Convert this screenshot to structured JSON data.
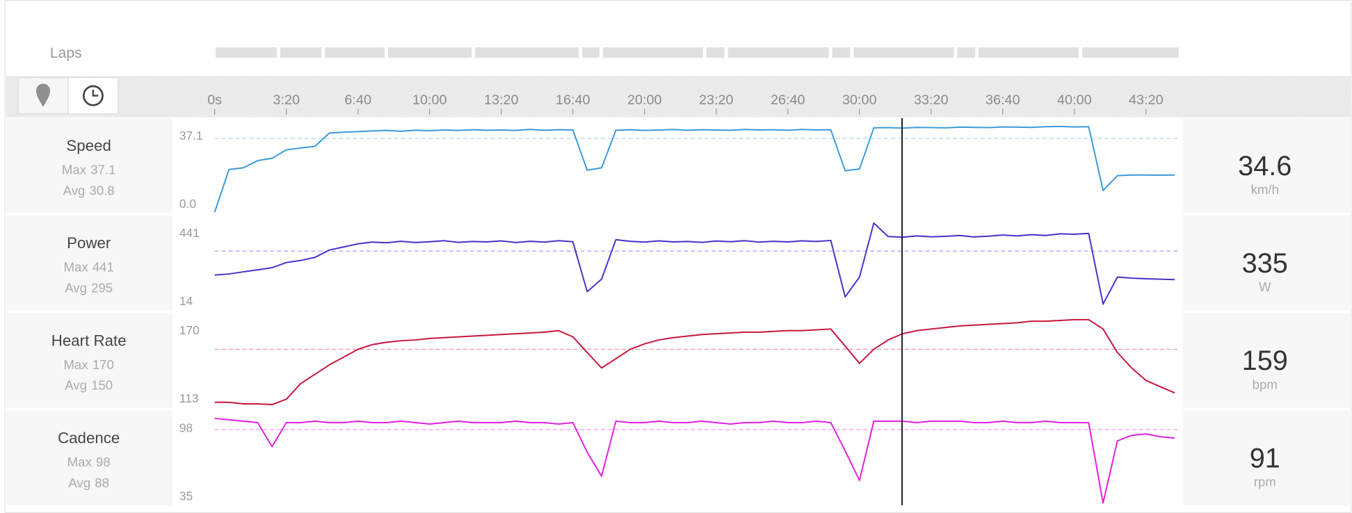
{
  "laps": {
    "label": "Laps",
    "bounds": [
      0,
      178,
      303,
      479,
      722,
      1021,
      1079,
      1368,
      1428,
      1719,
      1779,
      2068,
      2128,
      2417,
      2696
    ]
  },
  "time_axis": {
    "xlim": [
      0,
      2696
    ],
    "xticks": [
      {
        "value": 0,
        "label": "0s"
      },
      {
        "value": 200,
        "label": "3:20"
      },
      {
        "value": 400,
        "label": "6:40"
      },
      {
        "value": 600,
        "label": "10:00"
      },
      {
        "value": 800,
        "label": "13:20"
      },
      {
        "value": 1000,
        "label": "16:40"
      },
      {
        "value": 1200,
        "label": "20:00"
      },
      {
        "value": 1400,
        "label": "23:20"
      },
      {
        "value": 1600,
        "label": "26:40"
      },
      {
        "value": 1800,
        "label": "30:00"
      },
      {
        "value": 2000,
        "label": "33:20"
      },
      {
        "value": 2200,
        "label": "36:40"
      },
      {
        "value": 2400,
        "label": "40:00"
      },
      {
        "value": 2600,
        "label": "43:20"
      }
    ]
  },
  "cursor": 1919,
  "chart_data": [
    {
      "type": "line",
      "title": "Speed",
      "color": "#3a9ad9",
      "ylim": [
        0,
        37.1
      ],
      "yticks": [
        {
          "value": 0,
          "label": "0.0"
        },
        37.1
      ],
      "stats": [
        {
          "label": "Max",
          "value": 37.1
        },
        {
          "label": "Avg",
          "value": 30.8
        }
      ],
      "current": {
        "value": 34.6,
        "unit": "km/h"
      },
      "x": [
        0,
        40,
        80,
        120,
        160,
        200,
        240,
        280,
        320,
        360,
        400,
        440,
        480,
        520,
        560,
        600,
        640,
        680,
        720,
        760,
        800,
        840,
        880,
        920,
        960,
        1000,
        1040,
        1080,
        1120,
        1160,
        1200,
        1240,
        1280,
        1320,
        1360,
        1400,
        1440,
        1480,
        1520,
        1560,
        1600,
        1640,
        1680,
        1720,
        1760,
        1800,
        1840,
        1880,
        1920,
        1960,
        2000,
        2040,
        2080,
        2120,
        2160,
        2200,
        2240,
        2280,
        2320,
        2360,
        2400,
        2440,
        2480,
        2520,
        2560,
        2600,
        2640,
        2680
      ],
      "values": [
        0,
        17.8,
        18.5,
        21.5,
        22.5,
        26,
        26.8,
        27.5,
        33,
        33.4,
        33.6,
        33.9,
        34.1,
        33.8,
        34.2,
        34,
        34.3,
        34.1,
        34.4,
        34.2,
        34.3,
        34.1,
        34.5,
        34.2,
        34.4,
        34.3,
        17.5,
        18.5,
        34.2,
        34.4,
        34.1,
        34.3,
        34.5,
        34.2,
        34.4,
        34.3,
        34.2,
        34.5,
        34.3,
        34.4,
        34.2,
        34.5,
        34.3,
        34.4,
        17.3,
        18,
        35.2,
        35.3,
        35.1,
        35.4,
        35.3,
        35.2,
        35.5,
        35.4,
        35.3,
        35.6,
        35.5,
        35.4,
        35.7,
        35.8,
        35.6,
        35.7,
        9,
        15.2,
        15.5,
        15.5,
        15.4,
        15.5
      ]
    },
    {
      "type": "line",
      "title": "Power",
      "color": "#4b2fc9",
      "ylim": [
        14,
        441
      ],
      "yticks": [
        14,
        441
      ],
      "stats": [
        {
          "label": "Max",
          "value": 441
        },
        {
          "label": "Avg",
          "value": 295
        }
      ],
      "current": {
        "value": 335,
        "unit": "W"
      },
      "x": [
        0,
        40,
        80,
        120,
        160,
        200,
        240,
        280,
        320,
        360,
        400,
        440,
        480,
        520,
        560,
        600,
        640,
        680,
        720,
        760,
        800,
        840,
        880,
        920,
        960,
        1000,
        1040,
        1080,
        1120,
        1160,
        1200,
        1240,
        1280,
        1320,
        1360,
        1400,
        1440,
        1480,
        1520,
        1560,
        1600,
        1640,
        1680,
        1720,
        1760,
        1800,
        1840,
        1880,
        1920,
        1960,
        2000,
        2040,
        2080,
        2120,
        2160,
        2200,
        2240,
        2280,
        2320,
        2360,
        2400,
        2440,
        2480,
        2520,
        2560,
        2600,
        2640,
        2680
      ],
      "values": [
        180,
        185,
        195,
        205,
        215,
        240,
        250,
        265,
        300,
        315,
        330,
        338,
        335,
        342,
        336,
        340,
        345,
        337,
        341,
        339,
        344,
        336,
        342,
        338,
        345,
        340,
        100,
        160,
        350,
        342,
        338,
        344,
        339,
        341,
        337,
        343,
        340,
        345,
        338,
        342,
        339,
        344,
        341,
        346,
        75,
        170,
        430,
        365,
        362,
        368,
        364,
        366,
        370,
        363,
        367,
        372,
        368,
        374,
        370,
        378,
        376,
        380,
        40,
        170,
        165,
        162,
        160,
        158
      ]
    },
    {
      "type": "line",
      "title": "Heart Rate",
      "color": "#c8163c",
      "ylim": [
        113,
        170
      ],
      "yticks": [
        113,
        170
      ],
      "stats": [
        {
          "label": "Max",
          "value": 170
        },
        {
          "label": "Avg",
          "value": 150
        }
      ],
      "current": {
        "value": 159,
        "unit": "bpm"
      },
      "x": [
        0,
        40,
        80,
        120,
        160,
        200,
        240,
        280,
        320,
        360,
        400,
        440,
        480,
        520,
        560,
        600,
        640,
        680,
        720,
        760,
        800,
        840,
        880,
        920,
        960,
        1000,
        1040,
        1080,
        1120,
        1160,
        1200,
        1240,
        1280,
        1320,
        1360,
        1400,
        1440,
        1480,
        1520,
        1560,
        1600,
        1640,
        1680,
        1720,
        1760,
        1800,
        1840,
        1880,
        1920,
        1960,
        2000,
        2040,
        2080,
        2120,
        2160,
        2200,
        2240,
        2280,
        2320,
        2360,
        2400,
        2440,
        2480,
        2520,
        2560,
        2600,
        2640,
        2680
      ],
      "values": [
        116,
        116,
        115,
        115,
        114.5,
        118,
        128,
        134,
        140,
        145,
        150,
        153,
        154.5,
        155.5,
        156,
        157,
        157.5,
        158,
        158.5,
        159,
        159.5,
        160,
        160.5,
        161,
        162,
        158,
        148,
        138,
        144,
        150,
        153.5,
        156,
        157.5,
        158.5,
        159.5,
        160,
        160.5,
        161,
        161,
        161.5,
        162,
        162,
        162.5,
        163,
        152,
        141,
        150,
        156,
        160,
        162,
        163,
        164,
        165,
        165.5,
        166,
        166.5,
        167,
        168,
        168,
        168.5,
        169,
        169,
        163,
        148,
        138,
        130,
        126,
        122
      ]
    },
    {
      "type": "line",
      "title": "Cadence",
      "color": "#e020e0",
      "ylim": [
        35,
        98
      ],
      "yticks": [
        35,
        98
      ],
      "stats": [
        {
          "label": "Max",
          "value": 98
        },
        {
          "label": "Avg",
          "value": 88
        }
      ],
      "current": {
        "value": 91,
        "unit": "rpm"
      },
      "x": [
        0,
        40,
        80,
        120,
        160,
        200,
        240,
        280,
        320,
        360,
        400,
        440,
        480,
        520,
        560,
        600,
        640,
        680,
        720,
        760,
        800,
        840,
        880,
        920,
        960,
        1000,
        1040,
        1080,
        1120,
        1160,
        1200,
        1240,
        1280,
        1320,
        1360,
        1400,
        1440,
        1480,
        1520,
        1560,
        1600,
        1640,
        1680,
        1720,
        1760,
        1800,
        1840,
        1880,
        1920,
        1960,
        2000,
        2040,
        2080,
        2120,
        2160,
        2200,
        2240,
        2280,
        2320,
        2360,
        2400,
        2440,
        2480,
        2520,
        2560,
        2600,
        2640,
        2680
      ],
      "values": [
        96,
        95,
        94,
        93,
        76,
        93,
        93,
        94,
        93,
        93,
        94,
        93,
        93,
        94,
        93,
        92,
        93,
        94,
        93,
        93,
        93,
        94,
        93,
        93,
        92,
        93,
        72,
        55,
        94,
        93,
        93,
        94,
        93,
        93,
        94,
        93,
        92,
        93,
        93,
        94,
        93,
        93,
        94,
        93,
        73,
        52,
        94,
        94,
        94,
        93,
        94,
        94,
        94,
        93,
        93,
        94,
        93,
        93,
        94,
        93,
        93,
        93,
        36,
        80,
        84,
        85,
        83,
        82
      ]
    }
  ]
}
